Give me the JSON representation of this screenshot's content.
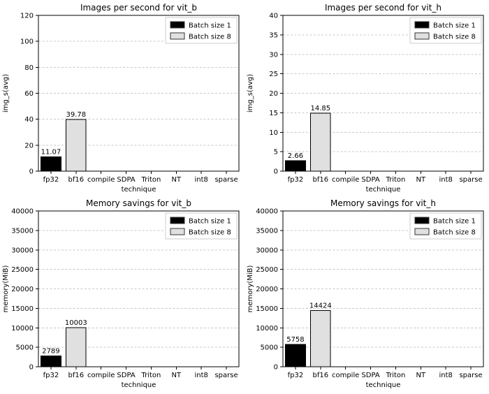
{
  "colors": {
    "batch1": "#000000",
    "batch8": "#e0e0e0",
    "grid": "#c8c8c8",
    "spine": "#000000",
    "background": "#ffffff"
  },
  "chart_data": [
    {
      "type": "bar",
      "title": "Images per second for vit_b",
      "xlabel": "technique",
      "ylabel": "img_s(avg)",
      "categories": [
        "fp32",
        "bf16",
        "compile",
        "SDPA",
        "Triton",
        "NT",
        "int8",
        "sparse"
      ],
      "ylim": [
        0,
        120
      ],
      "yticks": [
        0,
        20,
        40,
        60,
        80,
        100,
        120
      ],
      "grid": "horizontal-dashed",
      "legend_position": "upper right",
      "series": [
        {
          "name": "Batch size 1",
          "color": "#000000",
          "values": [
            11.07,
            null,
            null,
            null,
            null,
            null,
            null,
            null
          ],
          "labels": [
            "11.07",
            null,
            null,
            null,
            null,
            null,
            null,
            null
          ]
        },
        {
          "name": "Batch size 8",
          "color": "#e0e0e0",
          "values": [
            null,
            39.78,
            null,
            null,
            null,
            null,
            null,
            null
          ],
          "labels": [
            null,
            "39.78",
            null,
            null,
            null,
            null,
            null,
            null
          ]
        }
      ]
    },
    {
      "type": "bar",
      "title": "Images per second for vit_h",
      "xlabel": "technique",
      "ylabel": "img_s(avg)",
      "categories": [
        "fp32",
        "bf16",
        "compile",
        "SDPA",
        "Triton",
        "NT",
        "int8",
        "sparse"
      ],
      "ylim": [
        0,
        40
      ],
      "yticks": [
        0,
        5,
        10,
        15,
        20,
        25,
        30,
        35,
        40
      ],
      "grid": "horizontal-dashed",
      "legend_position": "upper right",
      "series": [
        {
          "name": "Batch size 1",
          "color": "#000000",
          "values": [
            2.66,
            null,
            null,
            null,
            null,
            null,
            null,
            null
          ],
          "labels": [
            "2.66",
            null,
            null,
            null,
            null,
            null,
            null,
            null
          ]
        },
        {
          "name": "Batch size 8",
          "color": "#e0e0e0",
          "values": [
            null,
            14.85,
            null,
            null,
            null,
            null,
            null,
            null
          ],
          "labels": [
            null,
            "14.85",
            null,
            null,
            null,
            null,
            null,
            null
          ]
        }
      ]
    },
    {
      "type": "bar",
      "title": "Memory savings for vit_b",
      "xlabel": "technique",
      "ylabel": "memory(MiB)",
      "categories": [
        "fp32",
        "bf16",
        "compile",
        "SDPA",
        "Triton",
        "NT",
        "int8",
        "sparse"
      ],
      "ylim": [
        0,
        40000
      ],
      "yticks": [
        0,
        5000,
        10000,
        15000,
        20000,
        25000,
        30000,
        35000,
        40000
      ],
      "grid": "horizontal-dashed",
      "legend_position": "upper right",
      "series": [
        {
          "name": "Batch size 1",
          "color": "#000000",
          "values": [
            2789,
            null,
            null,
            null,
            null,
            null,
            null,
            null
          ],
          "labels": [
            "2789",
            null,
            null,
            null,
            null,
            null,
            null,
            null
          ]
        },
        {
          "name": "Batch size 8",
          "color": "#e0e0e0",
          "values": [
            null,
            10003,
            null,
            null,
            null,
            null,
            null,
            null
          ],
          "labels": [
            null,
            "10003",
            null,
            null,
            null,
            null,
            null,
            null
          ]
        }
      ]
    },
    {
      "type": "bar",
      "title": "Memory savings for vit_h",
      "xlabel": "technique",
      "ylabel": "memory(MiB)",
      "categories": [
        "fp32",
        "bf16",
        "compile",
        "SDPA",
        "Triton",
        "NT",
        "int8",
        "sparse"
      ],
      "ylim": [
        0,
        40000
      ],
      "yticks": [
        0,
        5000,
        10000,
        15000,
        20000,
        25000,
        30000,
        35000,
        40000
      ],
      "grid": "horizontal-dashed",
      "legend_position": "upper right",
      "series": [
        {
          "name": "Batch size 1",
          "color": "#000000",
          "values": [
            5758,
            null,
            null,
            null,
            null,
            null,
            null,
            null
          ],
          "labels": [
            "5758",
            null,
            null,
            null,
            null,
            null,
            null,
            null
          ]
        },
        {
          "name": "Batch size 8",
          "color": "#e0e0e0",
          "values": [
            null,
            14424,
            null,
            null,
            null,
            null,
            null,
            null
          ],
          "labels": [
            null,
            "14424",
            null,
            null,
            null,
            null,
            null,
            null
          ]
        }
      ]
    }
  ]
}
